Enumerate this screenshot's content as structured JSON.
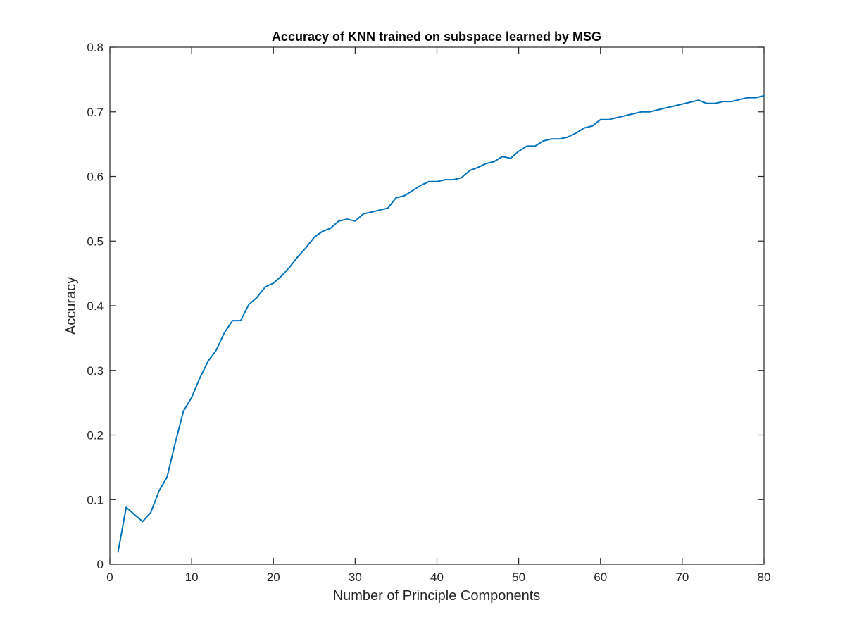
{
  "chart_data": {
    "type": "line",
    "title": "Accuracy of KNN trained on subspace learned by MSG",
    "xlabel": "Number of Principle Components",
    "ylabel": "Accuracy",
    "xlim": [
      0,
      80
    ],
    "ylim": [
      0,
      0.8
    ],
    "xticks": [
      0,
      10,
      20,
      30,
      40,
      50,
      60,
      70,
      80
    ],
    "yticks": [
      0,
      0.1,
      0.2,
      0.3,
      0.4,
      0.5,
      0.6,
      0.7,
      0.8
    ],
    "xtick_labels": [
      "0",
      "10",
      "20",
      "30",
      "40",
      "50",
      "60",
      "70",
      "80"
    ],
    "ytick_labels": [
      "0",
      "0.1",
      "0.2",
      "0.3",
      "0.4",
      "0.5",
      "0.6",
      "0.7",
      "0.8"
    ],
    "grid": false,
    "line_color": "#0072BD",
    "x": [
      1,
      2,
      3,
      4,
      5,
      6,
      7,
      8,
      9,
      10,
      11,
      12,
      13,
      14,
      15,
      16,
      17,
      18,
      19,
      20,
      21,
      22,
      23,
      24,
      25,
      26,
      27,
      28,
      29,
      30,
      31,
      32,
      33,
      34,
      35,
      36,
      37,
      38,
      39,
      40,
      41,
      42,
      43,
      44,
      45,
      46,
      47,
      48,
      49,
      50,
      51,
      52,
      53,
      54,
      55,
      56,
      57,
      58,
      59,
      60,
      61,
      62,
      63,
      64,
      65,
      66,
      67,
      68,
      69,
      70,
      71,
      72,
      73,
      74,
      75,
      76,
      77,
      78,
      79,
      80
    ],
    "y": [
      0.019,
      0.088,
      0.077,
      0.066,
      0.08,
      0.113,
      0.135,
      0.188,
      0.237,
      0.258,
      0.288,
      0.314,
      0.331,
      0.358,
      0.377,
      0.377,
      0.402,
      0.413,
      0.429,
      0.435,
      0.446,
      0.46,
      0.476,
      0.49,
      0.506,
      0.515,
      0.52,
      0.531,
      0.534,
      0.531,
      0.542,
      0.545,
      0.548,
      0.551,
      0.567,
      0.57,
      0.578,
      0.586,
      0.592,
      0.592,
      0.595,
      0.595,
      0.598,
      0.609,
      0.614,
      0.62,
      0.623,
      0.631,
      0.628,
      0.639,
      0.647,
      0.647,
      0.655,
      0.658,
      0.658,
      0.661,
      0.667,
      0.675,
      0.678,
      0.688,
      0.688,
      0.691,
      0.694,
      0.697,
      0.7,
      0.7,
      0.703,
      0.706,
      0.709,
      0.712,
      0.715,
      0.718,
      0.713,
      0.713,
      0.716,
      0.716,
      0.719,
      0.722,
      0.722,
      0.725
    ]
  }
}
